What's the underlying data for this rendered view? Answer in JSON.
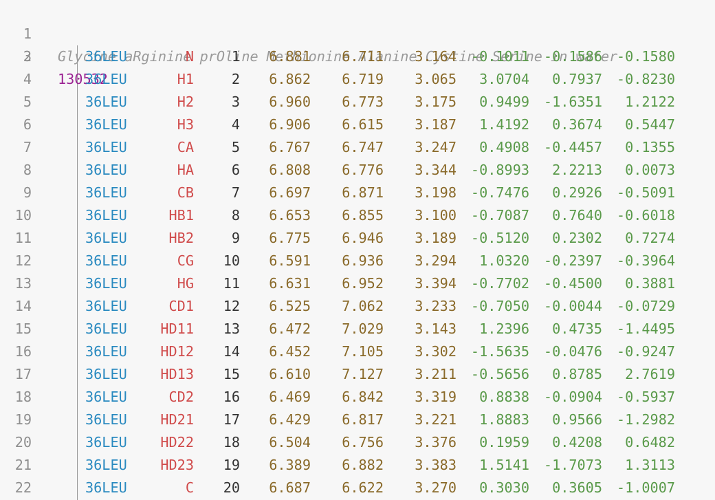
{
  "title_line": "Glycine aRginine prOline Methionine Alanine Cystine Serine in water",
  "atom_count": "130532",
  "line_numbers": [
    "1",
    "2",
    "3",
    "4",
    "5",
    "6",
    "7",
    "8",
    "9",
    "10",
    "11",
    "12",
    "13",
    "14",
    "15",
    "16",
    "17",
    "18",
    "19",
    "20",
    "21",
    "22"
  ],
  "rows": [
    {
      "resid": "36LEU",
      "atom": "N",
      "num": "1",
      "x": "6.881",
      "y": "6.711",
      "z": "3.164",
      "vx": "-0.1011",
      "vy": "-0.1586",
      "vz": "-0.1580"
    },
    {
      "resid": "36LEU",
      "atom": "H1",
      "num": "2",
      "x": "6.862",
      "y": "6.719",
      "z": "3.065",
      "vx": "3.0704",
      "vy": "0.7937",
      "vz": "-0.8230"
    },
    {
      "resid": "36LEU",
      "atom": "H2",
      "num": "3",
      "x": "6.960",
      "y": "6.773",
      "z": "3.175",
      "vx": "0.9499",
      "vy": "-1.6351",
      "vz": "1.2122"
    },
    {
      "resid": "36LEU",
      "atom": "H3",
      "num": "4",
      "x": "6.906",
      "y": "6.615",
      "z": "3.187",
      "vx": "1.4192",
      "vy": "0.3674",
      "vz": "0.5447"
    },
    {
      "resid": "36LEU",
      "atom": "CA",
      "num": "5",
      "x": "6.767",
      "y": "6.747",
      "z": "3.247",
      "vx": "0.4908",
      "vy": "-0.4457",
      "vz": "0.1355"
    },
    {
      "resid": "36LEU",
      "atom": "HA",
      "num": "6",
      "x": "6.808",
      "y": "6.776",
      "z": "3.344",
      "vx": "-0.8993",
      "vy": "2.2213",
      "vz": "0.0073"
    },
    {
      "resid": "36LEU",
      "atom": "CB",
      "num": "7",
      "x": "6.697",
      "y": "6.871",
      "z": "3.198",
      "vx": "-0.7476",
      "vy": "0.2926",
      "vz": "-0.5091"
    },
    {
      "resid": "36LEU",
      "atom": "HB1",
      "num": "8",
      "x": "6.653",
      "y": "6.855",
      "z": "3.100",
      "vx": "-0.7087",
      "vy": "0.7640",
      "vz": "-0.6018"
    },
    {
      "resid": "36LEU",
      "atom": "HB2",
      "num": "9",
      "x": "6.775",
      "y": "6.946",
      "z": "3.189",
      "vx": "-0.5120",
      "vy": "0.2302",
      "vz": "0.7274"
    },
    {
      "resid": "36LEU",
      "atom": "CG",
      "num": "10",
      "x": "6.591",
      "y": "6.936",
      "z": "3.294",
      "vx": "1.0320",
      "vy": "-0.2397",
      "vz": "-0.3964"
    },
    {
      "resid": "36LEU",
      "atom": "HG",
      "num": "11",
      "x": "6.631",
      "y": "6.952",
      "z": "3.394",
      "vx": "-0.7702",
      "vy": "-0.4500",
      "vz": "0.3881"
    },
    {
      "resid": "36LEU",
      "atom": "CD1",
      "num": "12",
      "x": "6.525",
      "y": "7.062",
      "z": "3.233",
      "vx": "-0.7050",
      "vy": "-0.0044",
      "vz": "-0.0729"
    },
    {
      "resid": "36LEU",
      "atom": "HD11",
      "num": "13",
      "x": "6.472",
      "y": "7.029",
      "z": "3.143",
      "vx": "1.2396",
      "vy": "0.4735",
      "vz": "-1.4495"
    },
    {
      "resid": "36LEU",
      "atom": "HD12",
      "num": "14",
      "x": "6.452",
      "y": "7.105",
      "z": "3.302",
      "vx": "-1.5635",
      "vy": "-0.0476",
      "vz": "-0.9247"
    },
    {
      "resid": "36LEU",
      "atom": "HD13",
      "num": "15",
      "x": "6.610",
      "y": "7.127",
      "z": "3.211",
      "vx": "-0.5656",
      "vy": "0.8785",
      "vz": "2.7619"
    },
    {
      "resid": "36LEU",
      "atom": "CD2",
      "num": "16",
      "x": "6.469",
      "y": "6.842",
      "z": "3.319",
      "vx": "0.8838",
      "vy": "-0.0904",
      "vz": "-0.5937"
    },
    {
      "resid": "36LEU",
      "atom": "HD21",
      "num": "17",
      "x": "6.429",
      "y": "6.817",
      "z": "3.221",
      "vx": "1.8883",
      "vy": "0.9566",
      "vz": "-1.2982"
    },
    {
      "resid": "36LEU",
      "atom": "HD22",
      "num": "18",
      "x": "6.504",
      "y": "6.756",
      "z": "3.376",
      "vx": "0.1959",
      "vy": "0.4208",
      "vz": "0.6482"
    },
    {
      "resid": "36LEU",
      "atom": "HD23",
      "num": "19",
      "x": "6.389",
      "y": "6.882",
      "z": "3.383",
      "vx": "1.5141",
      "vy": "-1.7073",
      "vz": "1.3113"
    },
    {
      "resid": "36LEU",
      "atom": "C",
      "num": "20",
      "x": "6.687",
      "y": "6.622",
      "z": "3.270",
      "vx": "0.3030",
      "vy": "0.3605",
      "vz": "-1.0007"
    }
  ],
  "colors": {
    "background": "#f7f7f7",
    "line_number": "#8f8f8f",
    "comment": "#9a9a9a",
    "count": "#9b2393",
    "residue": "#2a8ac0",
    "atom_name": "#d04b4b",
    "position": "#8a6a2a",
    "velocity": "#5a9a4a"
  }
}
